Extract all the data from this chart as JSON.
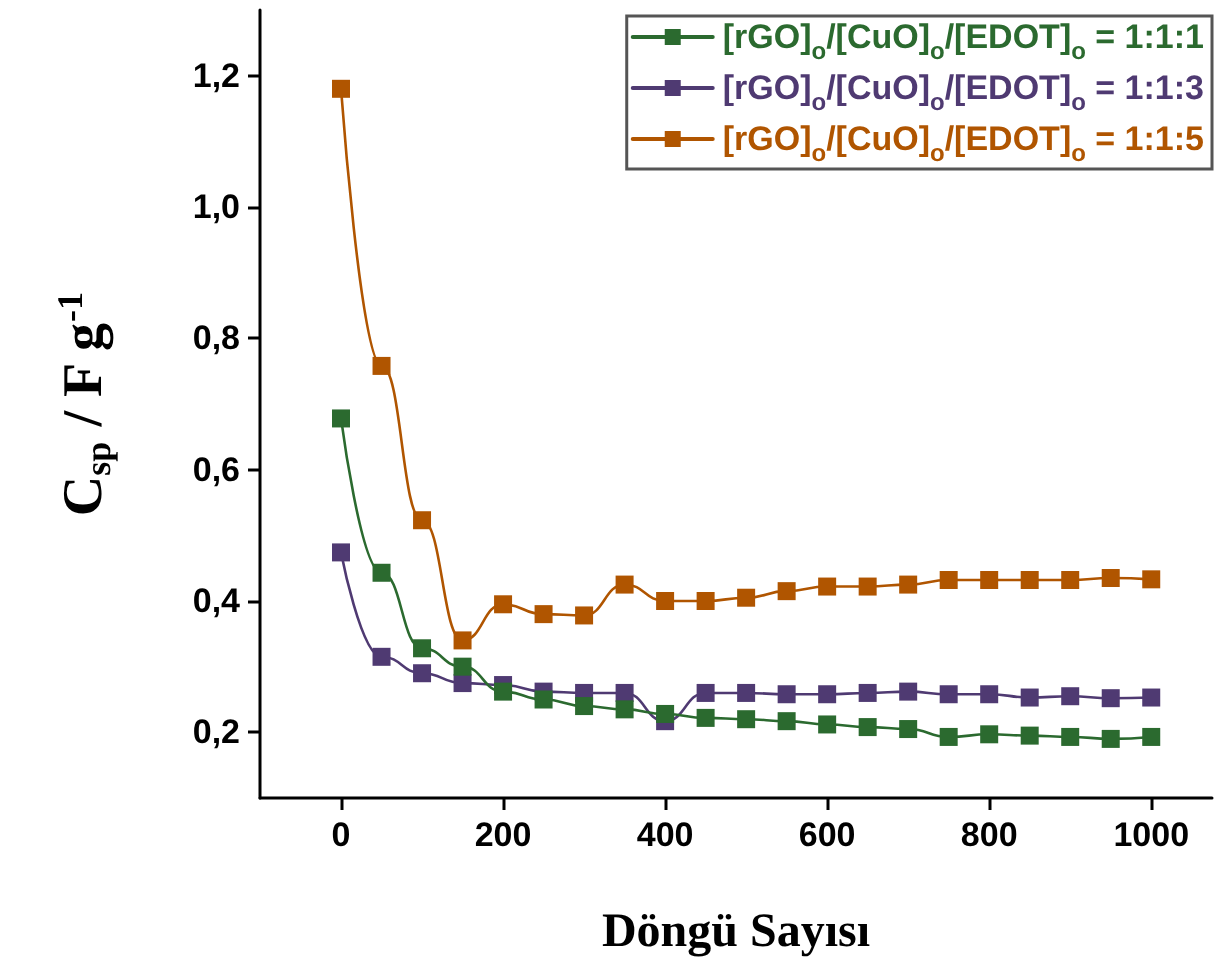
{
  "chart_data": {
    "type": "line",
    "xlabel": "Döngü Sayısı",
    "ylabel": "C$_{sp}$ / F g$^{-1}$",
    "x": [
      0,
      50,
      100,
      150,
      200,
      250,
      300,
      350,
      400,
      450,
      500,
      550,
      600,
      650,
      700,
      750,
      800,
      850,
      900,
      950,
      1000
    ],
    "series": [
      {
        "name": "[rGO]$_{o}$/[CuO]$_{o}$/[EDOT]$_{o}$ = 1:1:1",
        "color": "#2b6a2f",
        "values": [
          0.678,
          0.443,
          0.328,
          0.3,
          0.262,
          0.25,
          0.24,
          0.235,
          0.228,
          0.222,
          0.22,
          0.217,
          0.212,
          0.208,
          0.205,
          0.193,
          0.197,
          0.195,
          0.193,
          0.19,
          0.193
        ]
      },
      {
        "name": "[rGO]$_{o}$/[CuO]$_{o}$/[EDOT]$_{o}$ = 1:1:3",
        "color": "#4f3a72",
        "values": [
          0.474,
          0.315,
          0.29,
          0.275,
          0.272,
          0.262,
          0.26,
          0.26,
          0.217,
          0.26,
          0.26,
          0.258,
          0.258,
          0.26,
          0.262,
          0.258,
          0.258,
          0.253,
          0.255,
          0.252,
          0.253
        ]
      },
      {
        "name": "[rGO]$_{o}$/[CuO]$_{o}$/[EDOT]$_{o}$ = 1:1:5",
        "color": "#b05500",
        "values": [
          1.18,
          0.758,
          0.523,
          0.34,
          0.395,
          0.38,
          0.378,
          0.425,
          0.4,
          0.4,
          0.405,
          0.415,
          0.422,
          0.422,
          0.425,
          0.432,
          0.432,
          0.432,
          0.432,
          0.435,
          0.433
        ]
      }
    ],
    "xlim": [
      -100,
      1075
    ],
    "xticks": [
      0,
      200,
      400,
      600,
      800,
      1000
    ],
    "ylim": [
      0.1,
      1.3
    ],
    "yticks": [
      {
        "value": 0.2,
        "label": "0,2"
      },
      {
        "value": 0.4,
        "label": "0,4"
      },
      {
        "value": 0.6,
        "label": "0,6"
      },
      {
        "value": 0.8,
        "label": "0,8"
      },
      {
        "value": 1.0,
        "label": "1,0"
      },
      {
        "value": 1.2,
        "label": "1,2"
      }
    ],
    "grid": false,
    "legend": "top right",
    "marker": "square",
    "line_style": "solid"
  }
}
